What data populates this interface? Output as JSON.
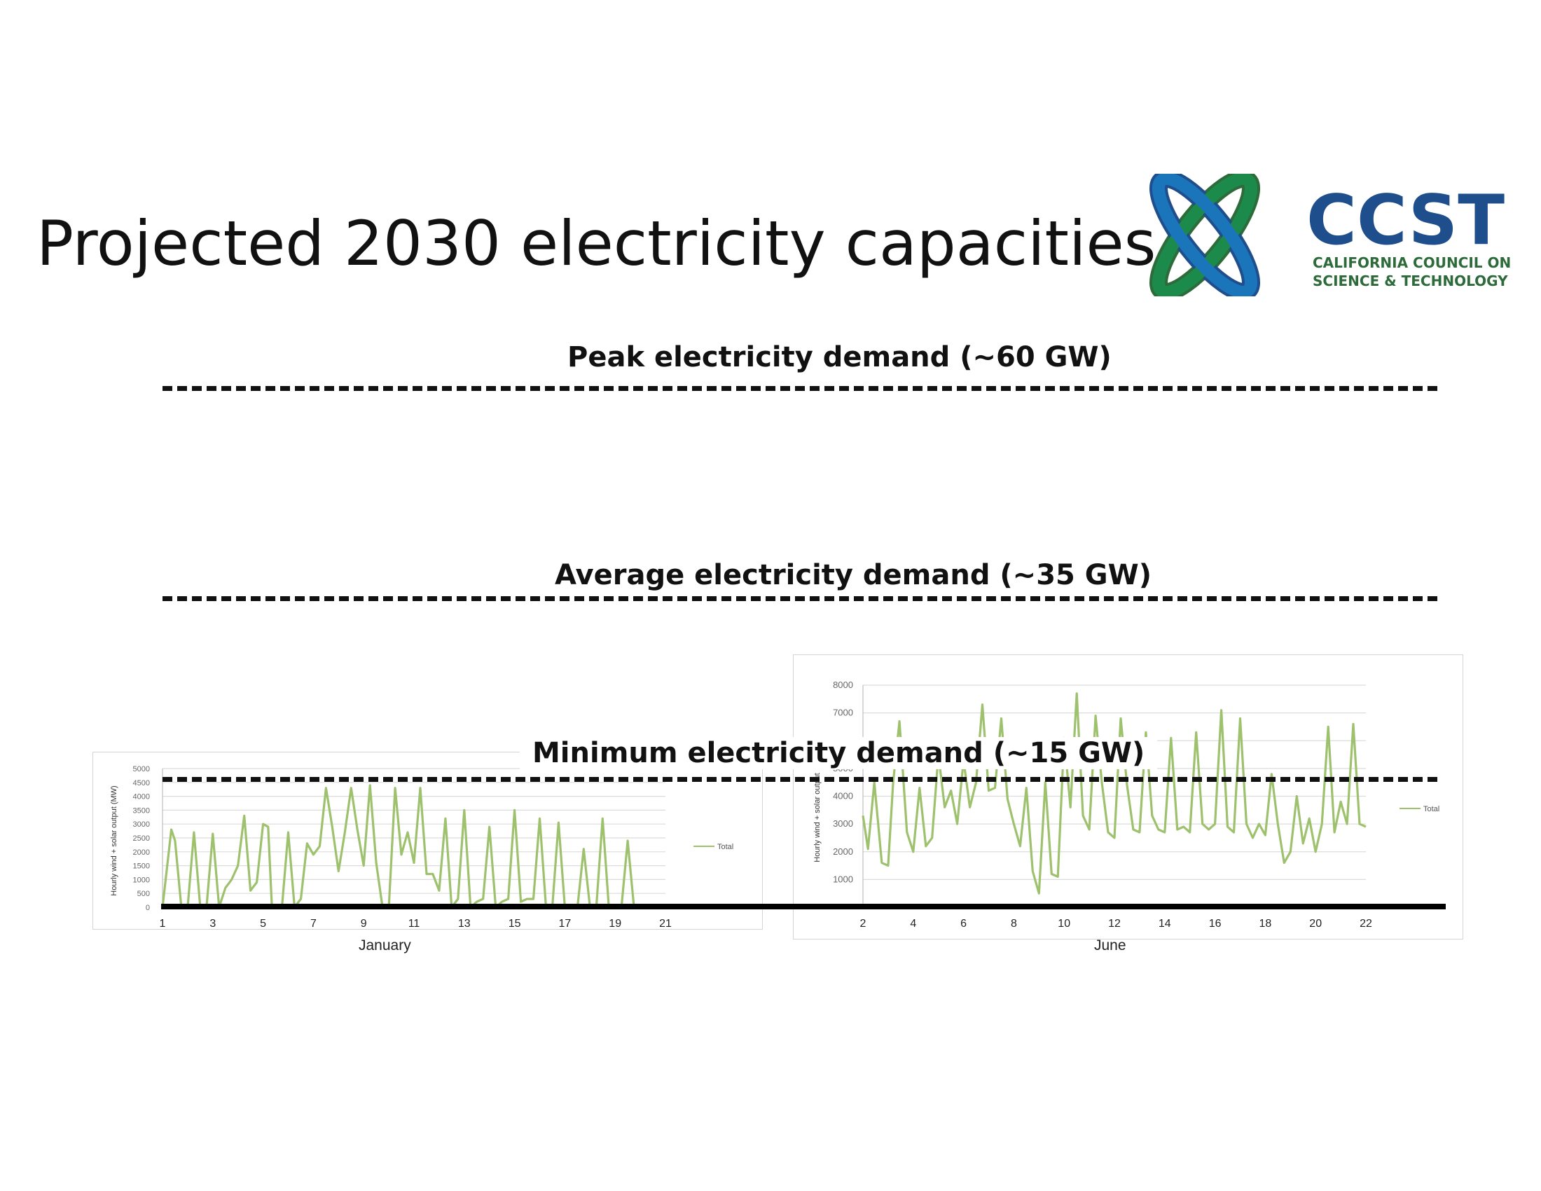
{
  "slide": {
    "title": "Projected 2030 electricity capacities"
  },
  "logo": {
    "acronym": "CCST",
    "line1": "CALIFORNIA COUNCIL ON",
    "line2": "SCIENCE & TECHNOLOGY",
    "colors": {
      "blue": "#1b75bb",
      "dark_blue": "#1f4e8c",
      "green": "#1c8a4a",
      "dark_green": "#2d6b3a"
    }
  },
  "demand_lines": {
    "peak": "Peak electricity demand (~60 GW)",
    "average": "Average electricity demand (~35 GW)",
    "minimum": "Minimum electricity demand (~15 GW)"
  },
  "chart_data": [
    {
      "type": "line",
      "month_label": "January",
      "ylabel": "Hourly wind + solar output (MW)",
      "ylim": [
        0,
        5000
      ],
      "yticks": [
        0,
        500,
        1000,
        1500,
        2000,
        2500,
        3000,
        3500,
        4000,
        4500,
        5000
      ],
      "xticks": [
        "1",
        "3",
        "5",
        "7",
        "9",
        "11",
        "13",
        "15",
        "17",
        "19",
        "21"
      ],
      "xlim": [
        1,
        21
      ],
      "grid": true,
      "legend": "right",
      "series_color": "#9dc16c",
      "series": [
        {
          "name": "Total",
          "x": [
            1.0,
            1.35,
            1.5,
            1.75,
            2.0,
            2.25,
            2.5,
            2.75,
            3.0,
            3.25,
            3.5,
            3.75,
            4.0,
            4.25,
            4.5,
            4.75,
            5.0,
            5.2,
            5.35,
            5.5,
            5.75,
            6.0,
            6.25,
            6.5,
            6.75,
            7.0,
            7.25,
            7.5,
            7.75,
            8.0,
            8.25,
            8.5,
            8.75,
            9.0,
            9.25,
            9.5,
            9.75,
            10.0,
            10.25,
            10.5,
            10.75,
            11.0,
            11.25,
            11.5,
            11.75,
            12.0,
            12.25,
            12.5,
            12.75,
            13.0,
            13.25,
            13.5,
            13.75,
            14.0,
            14.25,
            14.5,
            14.75,
            15.0,
            15.25,
            15.5,
            15.75,
            16.0,
            16.25,
            16.5,
            16.75,
            17.0,
            17.25,
            17.5,
            17.75,
            18.0,
            18.25,
            18.5,
            18.75,
            19.0,
            19.25,
            19.5,
            19.75,
            20.0,
            20.25,
            20.5,
            20.75,
            21.0
          ],
          "y": [
            0,
            2800,
            2400,
            0,
            0,
            2700,
            0,
            0,
            2650,
            0,
            700,
            1000,
            1500,
            3300,
            600,
            900,
            3000,
            2900,
            0,
            0,
            0,
            2700,
            0,
            300,
            2300,
            1900,
            2200,
            4300,
            2900,
            1300,
            2700,
            4300,
            2800,
            1500,
            4400,
            1600,
            0,
            0,
            4300,
            1900,
            2700,
            1600,
            4300,
            1200,
            1200,
            600,
            3200,
            0,
            300,
            3500,
            0,
            200,
            300,
            2900,
            0,
            200,
            300,
            3500,
            200,
            300,
            300,
            3200,
            0,
            0,
            3050,
            0,
            0,
            0,
            2100,
            0,
            0,
            3200,
            0,
            0,
            0,
            2400,
            0,
            0,
            0,
            0,
            0,
            0
          ]
        }
      ]
    },
    {
      "type": "line",
      "month_label": "June",
      "ylabel": "Hourly wind + solar output",
      "ylim": [
        0,
        8000
      ],
      "yticks": [
        1000,
        2000,
        3000,
        4000,
        5000,
        6000,
        7000,
        8000
      ],
      "xticks": [
        "2",
        "4",
        "6",
        "8",
        "10",
        "12",
        "14",
        "16",
        "18",
        "20",
        "22"
      ],
      "xlim": [
        2,
        22
      ],
      "grid": true,
      "legend": "right",
      "series_color": "#9dc16c",
      "series": [
        {
          "name": "Total",
          "x": [
            2.0,
            2.2,
            2.45,
            2.75,
            3.0,
            3.2,
            3.45,
            3.75,
            4.0,
            4.25,
            4.5,
            4.75,
            5.0,
            5.25,
            5.5,
            5.75,
            6.0,
            6.25,
            6.5,
            6.75,
            7.0,
            7.25,
            7.5,
            7.75,
            8.0,
            8.25,
            8.5,
            8.75,
            9.0,
            9.25,
            9.5,
            9.75,
            10.0,
            10.25,
            10.5,
            10.75,
            11.0,
            11.25,
            11.5,
            11.75,
            12.0,
            12.25,
            12.5,
            12.75,
            13.0,
            13.25,
            13.5,
            13.75,
            14.0,
            14.25,
            14.5,
            14.75,
            15.0,
            15.25,
            15.5,
            15.75,
            16.0,
            16.25,
            16.5,
            16.75,
            17.0,
            17.25,
            17.5,
            17.75,
            18.0,
            18.25,
            18.5,
            18.75,
            19.0,
            19.25,
            19.5,
            19.75,
            20.0,
            20.25,
            20.5,
            20.75,
            21.0,
            21.25,
            21.5,
            21.75,
            22.0
          ],
          "y": [
            3300,
            2100,
            4500,
            1600,
            1500,
            4500,
            6700,
            2700,
            2000,
            4300,
            2200,
            2500,
            5500,
            3600,
            4200,
            3000,
            5300,
            3600,
            4500,
            7300,
            4200,
            4300,
            6800,
            3900,
            3000,
            2200,
            4300,
            1300,
            500,
            4500,
            1200,
            1100,
            6100,
            3600,
            7700,
            3300,
            2800,
            6900,
            4500,
            2700,
            2500,
            6800,
            4400,
            2800,
            2700,
            6300,
            3300,
            2800,
            2700,
            6100,
            2800,
            2900,
            2700,
            6300,
            3000,
            2800,
            3000,
            7100,
            2900,
            2700,
            6800,
            3000,
            2500,
            3000,
            2600,
            4800,
            3000,
            1600,
            2000,
            4000,
            2300,
            3200,
            2000,
            3000,
            6500,
            2700,
            3800,
            3000,
            6600,
            3000,
            2900
          ]
        }
      ]
    }
  ]
}
